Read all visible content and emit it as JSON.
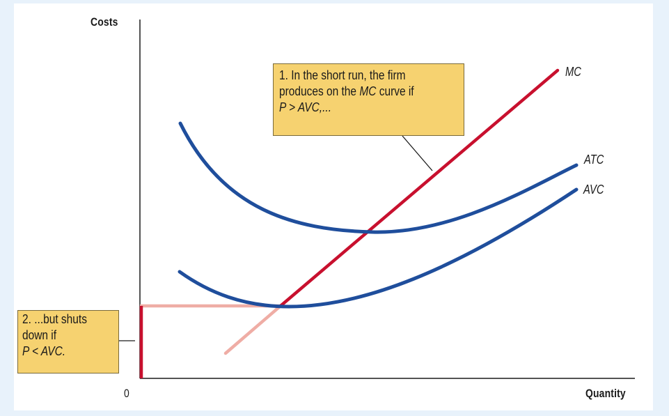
{
  "chart_data": {
    "type": "line",
    "xlabel": "Quantity",
    "ylabel": "Costs",
    "origin_label": "0",
    "grid": false,
    "legend": "none",
    "series": [
      {
        "name": "MC",
        "color": "#c8102e",
        "faded_color": "#efada5"
      },
      {
        "name": "ATC",
        "color": "#1f4e9c"
      },
      {
        "name": "AVC",
        "color": "#1f4e9c"
      }
    ],
    "annotations": [
      {
        "id": "short-run",
        "lines": [
          [
            {
              "t": "1. In the short run, the firm"
            }
          ],
          [
            {
              "t": "produces on the "
            },
            {
              "t": "MC",
              "i": true
            },
            {
              "t": " curve if"
            }
          ],
          [
            {
              "t": "P > AVC,...",
              "i": true
            }
          ]
        ]
      },
      {
        "id": "shutdown",
        "lines": [
          [
            {
              "t": "2. ...but shuts"
            }
          ],
          [
            {
              "t": "down if"
            }
          ],
          [
            {
              "t": "P < AVC.",
              "i": true
            }
          ]
        ]
      }
    ]
  },
  "colors": {
    "background": "#e8f2fb",
    "plot_background": "#ffffff",
    "callout_fill": "#f6d270",
    "axis": "#1a1a1a"
  }
}
